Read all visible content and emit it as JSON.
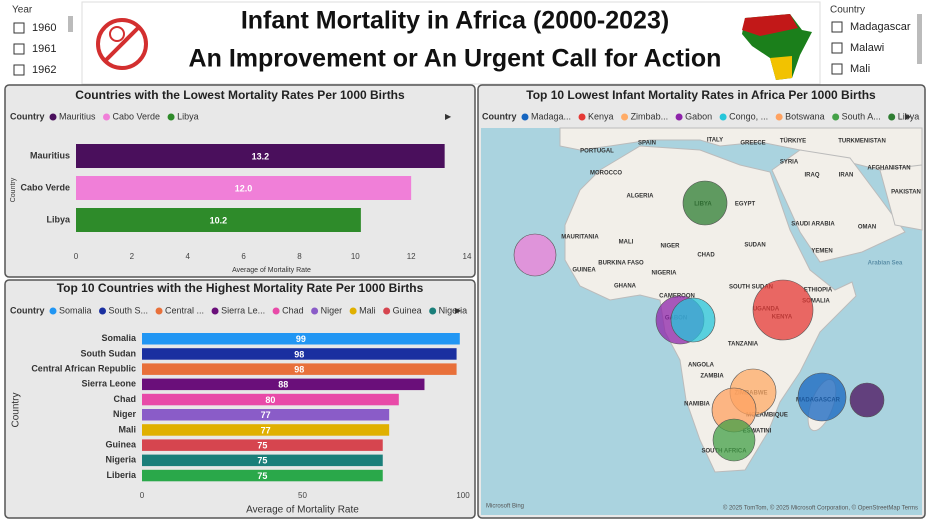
{
  "year_slicer": {
    "title": "Year",
    "items": [
      "1960",
      "1961",
      "1962"
    ]
  },
  "country_slicer": {
    "title": "Country",
    "items": [
      "Madagascar",
      "Malawi",
      "Mali"
    ]
  },
  "header": {
    "title": "Infant Mortality in Africa (2000-2023)",
    "subtitle": "An Improvement or An Urgent Call for Action"
  },
  "chart_data": [
    {
      "type": "bar",
      "orientation": "horizontal",
      "title": "Countries with the Lowest Mortality Rates Per 1000 Births",
      "legend_title": "Country",
      "legend": [
        {
          "name": "Mauritius",
          "color": "#4a0f5c"
        },
        {
          "name": "Cabo Verde",
          "color": "#f07fd8"
        },
        {
          "name": "Libya",
          "color": "#2e8b2a"
        }
      ],
      "categories": [
        "Mauritius",
        "Cabo Verde",
        "Libya"
      ],
      "values": [
        13.2,
        12.0,
        10.2
      ],
      "value_labels": [
        "13.2",
        "12.0",
        "10.2"
      ],
      "colors": [
        "#4a0f5c",
        "#f07fd8",
        "#2e8b2a"
      ],
      "xlim": [
        0,
        14
      ],
      "xticks": [
        0,
        2,
        4,
        6,
        8,
        10,
        12,
        14
      ],
      "x_label": "Average of Mortality Rate",
      "y_label": "Country"
    },
    {
      "type": "bar",
      "orientation": "horizontal",
      "title": "Top 10 Countries with the Highest Mortality Rate Per 1000 Births",
      "legend_title": "Country",
      "legend": [
        {
          "name": "Somalia",
          "color": "#2196f3"
        },
        {
          "name": "South S...",
          "color": "#1a2fa0"
        },
        {
          "name": "Central ...",
          "color": "#e8703a"
        },
        {
          "name": "Sierra Le...",
          "color": "#6a0f7a"
        },
        {
          "name": "Chad",
          "color": "#e84aa8"
        },
        {
          "name": "Niger",
          "color": "#8a5cc8"
        },
        {
          "name": "Mali",
          "color": "#e0b000"
        },
        {
          "name": "Guinea",
          "color": "#d6454f"
        },
        {
          "name": "Nigeria",
          "color": "#1a7f7a"
        }
      ],
      "categories": [
        "Somalia",
        "South Sudan",
        "Central African Republic",
        "Sierra Leone",
        "Chad",
        "Niger",
        "Mali",
        "Guinea",
        "Nigeria",
        "Liberia"
      ],
      "values": [
        99,
        98,
        98,
        88,
        80,
        77,
        77,
        75,
        75,
        75
      ],
      "colors": [
        "#2196f3",
        "#1a2fa0",
        "#e8703a",
        "#6a0f7a",
        "#e84aa8",
        "#8a5cc8",
        "#e0b000",
        "#d6454f",
        "#1a7f7a",
        "#2aa84a"
      ],
      "xlim": [
        0,
        100
      ],
      "xticks": [
        0,
        50,
        100
      ],
      "x_label": "Average of Mortality Rate",
      "y_label": "Country"
    }
  ],
  "map": {
    "title": "Top 10 Lowest Infant Mortality Rates in Africa Per 1000 Births",
    "legend_title": "Country",
    "legend": [
      {
        "name": "Madaga...",
        "color": "#1565c0"
      },
      {
        "name": "Kenya",
        "color": "#e53935"
      },
      {
        "name": "Zimbab...",
        "color": "#ffab66"
      },
      {
        "name": "Gabon",
        "color": "#8e24aa"
      },
      {
        "name": "Congo, ...",
        "color": "#26c6da"
      },
      {
        "name": "Botswana",
        "color": "#ffa260"
      },
      {
        "name": "South A...",
        "color": "#43a047"
      },
      {
        "name": "Libya",
        "color": "#2e7d32"
      }
    ],
    "labels": [
      "PORTUGAL",
      "SPAIN",
      "ITALY",
      "GREECE",
      "TÜRKIYE",
      "SYRIA",
      "IRAQ",
      "TURKMENISTAN",
      "IRAN",
      "AFGHANISTAN",
      "PAKISTAN",
      "MOROCCO",
      "ALGERIA",
      "LIBYA",
      "EGYPT",
      "SAUDI ARABIA",
      "OMAN",
      "YEMEN",
      "Arabian Sea",
      "MAURITANIA",
      "MALI",
      "NIGER",
      "CHAD",
      "SUDAN",
      "ETHIOPIA",
      "BURKINA FASO",
      "NIGERIA",
      "GUINEA",
      "GHANA",
      "CAMEROON",
      "SOUTH SUDAN",
      "SOMALIA",
      "UGANDA",
      "KENYA",
      "GABON",
      "TANZANIA",
      "ANGOLA",
      "ZAMBIA",
      "ZIMBABWE",
      "NAMIBIA",
      "MOZAMBIQUE",
      "MADAGASCAR",
      "ESWATINI",
      "SOUTH AFRICA"
    ],
    "attribution": "© 2025 TomTom, © 2025 Microsoft Corporation, © OpenStreetMap Terms",
    "brand": "Microsoft Bing"
  }
}
